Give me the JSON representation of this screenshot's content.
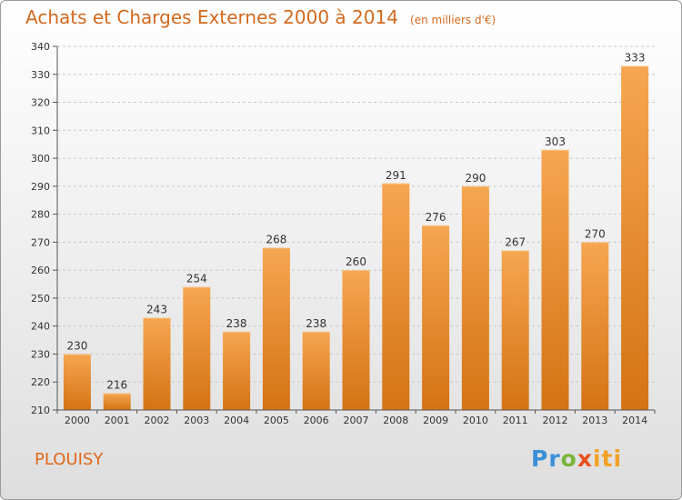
{
  "title": "Achats et Charges Externes 2000 à 2014",
  "unit_note": "(en milliers d'€)",
  "commune": "PLOUISY",
  "logo": {
    "p1": "Pr",
    "p2": "o",
    "p3": "x",
    "p4": "iti"
  },
  "colors": {
    "bar_top": "#f6a651",
    "bar_bottom": "#d47314",
    "title": "#d2691e"
  },
  "chart_data": {
    "type": "bar",
    "title": "Achats et Charges Externes 2000 à 2014",
    "xlabel": "",
    "ylabel": "",
    "categories": [
      "2000",
      "2001",
      "2002",
      "2003",
      "2004",
      "2005",
      "2006",
      "2007",
      "2008",
      "2009",
      "2010",
      "2011",
      "2012",
      "2013",
      "2014"
    ],
    "values": [
      230,
      216,
      243,
      254,
      238,
      268,
      238,
      260,
      291,
      276,
      290,
      267,
      303,
      270,
      333
    ],
    "ylim": [
      210,
      340
    ],
    "yticks": [
      210,
      220,
      230,
      240,
      250,
      260,
      270,
      280,
      290,
      300,
      310,
      320,
      330,
      340
    ],
    "grid": "horizontal dashed",
    "legend": "none"
  }
}
